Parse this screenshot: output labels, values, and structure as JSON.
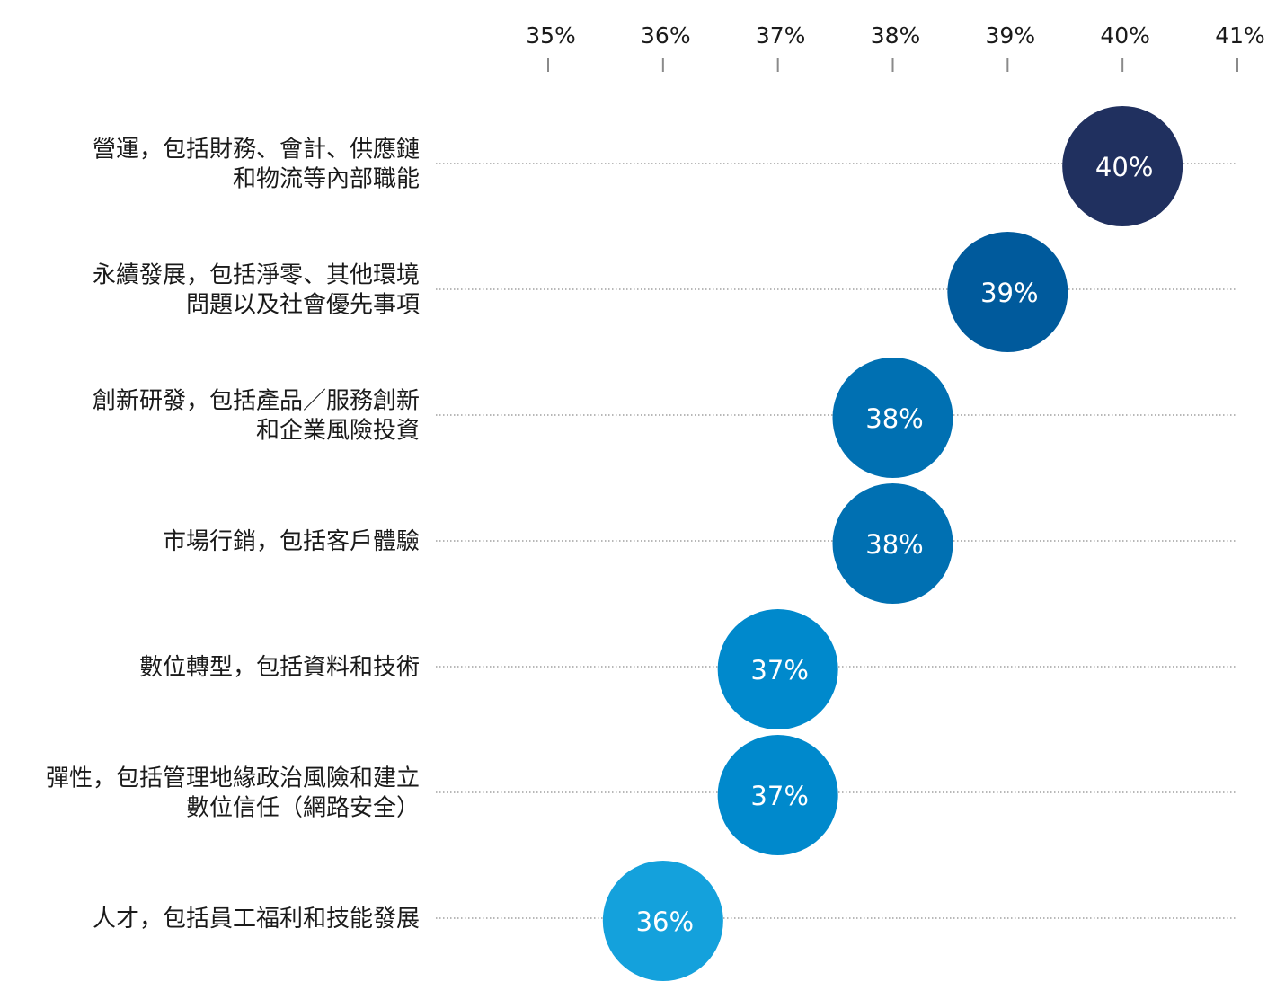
{
  "chart_data": {
    "type": "scatter",
    "title": "",
    "xlabel": "",
    "ylabel": "",
    "xlim": [
      35,
      41
    ],
    "x_ticks": [
      "35%",
      "36%",
      "37%",
      "38%",
      "39%",
      "40%",
      "41%"
    ],
    "grid": "dotted guide line per category",
    "categories": [
      {
        "lines": [
          "營運，包括財務、會計、供應鏈",
          "和物流等內部職能"
        ],
        "value": 40,
        "label": "40%",
        "color": "#20305f"
      },
      {
        "lines": [
          "永續發展，包括淨零、其他環境",
          "問題以及社會優先事項"
        ],
        "value": 39,
        "label": "39%",
        "color": "#005a9c"
      },
      {
        "lines": [
          "創新研發，包括產品／服務創新",
          "和企業風險投資"
        ],
        "value": 38,
        "label": "38%",
        "color": "#0070b2"
      },
      {
        "lines": [
          "市場行銷，包括客戶體驗"
        ],
        "value": 38,
        "label": "38%",
        "color": "#0070b2"
      },
      {
        "lines": [
          "數位轉型，包括資料和技術"
        ],
        "value": 37,
        "label": "37%",
        "color": "#0089cc"
      },
      {
        "lines": [
          "彈性，包括管理地緣政治風險和建立",
          "數位信任（網路安全）"
        ],
        "value": 37,
        "label": "37%",
        "color": "#0089cc"
      },
      {
        "lines": [
          "人才，包括員工福利和技能發展"
        ],
        "value": 36,
        "label": "36%",
        "color": "#14a1dc"
      }
    ]
  }
}
